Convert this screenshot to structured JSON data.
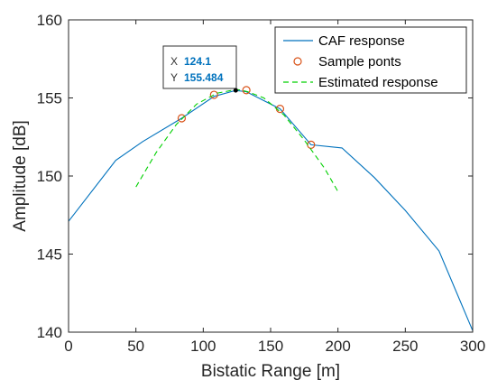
{
  "chart_data": {
    "type": "line",
    "xlabel": "Bistatic Range [m]",
    "ylabel": "Amplitude [dB]",
    "xlim": [
      0,
      300
    ],
    "ylim": [
      140,
      160
    ],
    "xticks": [
      "0",
      "50",
      "100",
      "150",
      "200",
      "250",
      "300"
    ],
    "yticks": [
      "140",
      "145",
      "150",
      "155",
      "160"
    ],
    "grid": false,
    "legend_position": "top-right",
    "series": [
      {
        "name": "CAF response",
        "style": "solid-line",
        "color": "#0072BD",
        "x": [
          0,
          35,
          55,
          84,
          108,
          124,
          132,
          157,
          180,
          203,
          227,
          250,
          275,
          300
        ],
        "y": [
          147.1,
          151.0,
          152.2,
          153.7,
          155.1,
          155.48,
          155.4,
          154.3,
          152.0,
          151.8,
          149.9,
          147.8,
          145.2,
          140.1
        ]
      },
      {
        "name": "Sample ponts",
        "style": "markers",
        "color": "#D95319",
        "x": [
          84,
          108,
          132,
          157,
          180
        ],
        "y": [
          153.7,
          155.2,
          155.5,
          154.3,
          152.0
        ]
      },
      {
        "name": "Estimated response",
        "style": "dashed-line",
        "color": "#00D000",
        "x": [
          50,
          65,
          80,
          95,
          110,
          125,
          133,
          145,
          160,
          175,
          190,
          200
        ],
        "y": [
          149.3,
          151.5,
          153.3,
          154.6,
          155.3,
          155.55,
          155.4,
          155.0,
          153.9,
          152.3,
          150.5,
          149.0
        ]
      }
    ],
    "datatip": {
      "x_label": "X",
      "x_value": "124.1",
      "y_label": "Y",
      "y_value": "155.484",
      "x": 124.1,
      "y": 155.484
    }
  }
}
